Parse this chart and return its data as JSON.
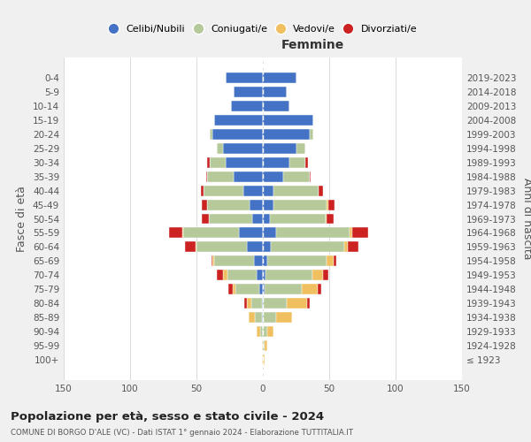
{
  "age_groups": [
    "100+",
    "95-99",
    "90-94",
    "85-89",
    "80-84",
    "75-79",
    "70-74",
    "65-69",
    "60-64",
    "55-59",
    "50-54",
    "45-49",
    "40-44",
    "35-39",
    "30-34",
    "25-29",
    "20-24",
    "15-19",
    "10-14",
    "5-9",
    "0-4"
  ],
  "birth_years": [
    "≤ 1923",
    "1924-1928",
    "1929-1933",
    "1934-1938",
    "1939-1943",
    "1944-1948",
    "1949-1953",
    "1954-1958",
    "1959-1963",
    "1964-1968",
    "1969-1973",
    "1974-1978",
    "1979-1983",
    "1984-1988",
    "1989-1993",
    "1994-1998",
    "1999-2003",
    "2004-2008",
    "2009-2013",
    "2014-2018",
    "2019-2023"
  ],
  "colors": {
    "celibi": "#4472c4",
    "coniugati": "#b5c99a",
    "vedovi": "#f0c060",
    "divorziati": "#cc2222"
  },
  "m_cel": [
    0,
    0,
    0,
    1,
    1,
    3,
    5,
    7,
    12,
    18,
    8,
    10,
    15,
    22,
    28,
    30,
    38,
    37,
    24,
    22,
    28
  ],
  "m_con": [
    0,
    0,
    2,
    5,
    8,
    18,
    22,
    30,
    38,
    42,
    33,
    32,
    30,
    20,
    12,
    5,
    2,
    0,
    0,
    0,
    0
  ],
  "m_ved": [
    1,
    1,
    3,
    5,
    3,
    2,
    3,
    1,
    1,
    1,
    0,
    0,
    0,
    0,
    0,
    0,
    0,
    0,
    0,
    0,
    0
  ],
  "m_div": [
    0,
    0,
    0,
    0,
    2,
    3,
    5,
    1,
    8,
    10,
    5,
    4,
    2,
    1,
    2,
    0,
    0,
    0,
    0,
    0,
    0
  ],
  "f_cel": [
    0,
    0,
    0,
    0,
    0,
    1,
    2,
    3,
    6,
    10,
    5,
    8,
    8,
    15,
    20,
    25,
    35,
    38,
    20,
    18,
    25
  ],
  "f_con": [
    0,
    1,
    3,
    10,
    18,
    28,
    35,
    45,
    55,
    55,
    42,
    40,
    34,
    20,
    12,
    7,
    3,
    0,
    0,
    0,
    0
  ],
  "f_ved": [
    1,
    2,
    5,
    12,
    15,
    12,
    8,
    5,
    3,
    2,
    1,
    1,
    0,
    0,
    0,
    0,
    0,
    0,
    0,
    0,
    0
  ],
  "f_div": [
    0,
    0,
    0,
    0,
    2,
    3,
    4,
    2,
    8,
    12,
    5,
    5,
    3,
    1,
    2,
    0,
    0,
    0,
    0,
    0,
    0
  ],
  "title": "Popolazione per età, sesso e stato civile - 2024",
  "subtitle": "COMUNE DI BORGO D'ALE (VC) - Dati ISTAT 1° gennaio 2024 - Elaborazione TUTTITALIA.IT",
  "xlabel_right": "Femmine",
  "ylabel_left": "Fasce di età",
  "ylabel_right": "Anni di nascita",
  "xlim": 150,
  "legend_labels": [
    "Celibi/Nubili",
    "Coniugati/e",
    "Vedovi/e",
    "Divorziati/e"
  ],
  "bg_color": "#f0f0f0",
  "plot_bg": "#ffffff"
}
